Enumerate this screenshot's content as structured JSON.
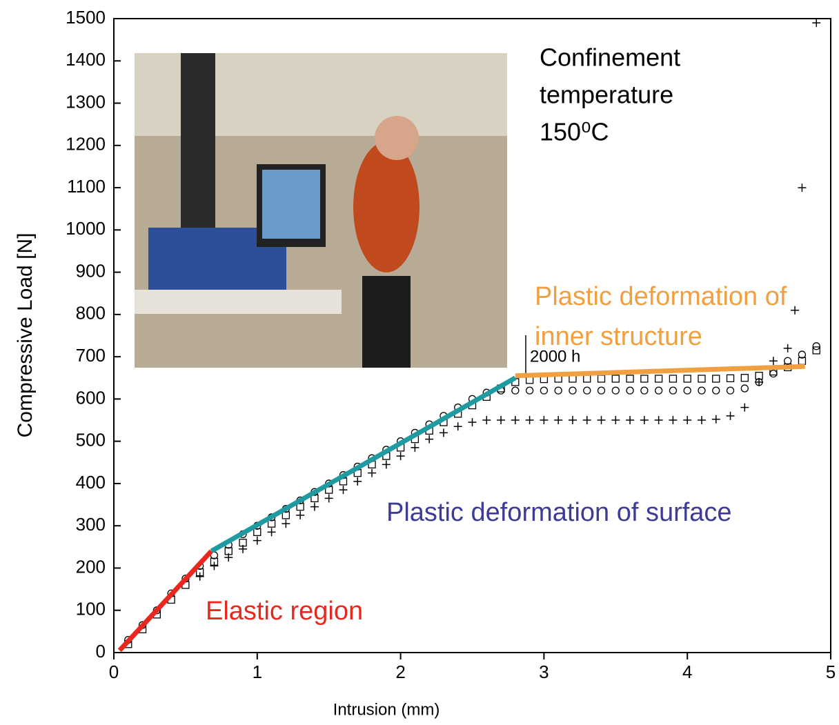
{
  "chart_data": {
    "type": "scatter",
    "x_label": "Intrusion (mm)",
    "y_label": "Compressive Load [N]",
    "xlim": [
      0,
      5
    ],
    "ylim": [
      0,
      1500
    ],
    "xticks": [
      0,
      1,
      2,
      3,
      4,
      5
    ],
    "yticks": [
      0,
      100,
      200,
      300,
      400,
      500,
      600,
      700,
      800,
      900,
      1000,
      1100,
      1200,
      1300,
      1400,
      1500
    ],
    "series": [
      {
        "marker": "square",
        "color": "#000000",
        "x": [
          0.1,
          0.2,
          0.3,
          0.4,
          0.5,
          0.6,
          0.7,
          0.8,
          0.9,
          1.0,
          1.1,
          1.2,
          1.3,
          1.4,
          1.5,
          1.6,
          1.7,
          1.8,
          1.9,
          2.0,
          2.1,
          2.2,
          2.3,
          2.4,
          2.5,
          2.6,
          2.7,
          2.8,
          2.9,
          3.0,
          3.1,
          3.2,
          3.3,
          3.4,
          3.5,
          3.6,
          3.7,
          3.8,
          3.9,
          4.0,
          4.1,
          4.2,
          4.3,
          4.4,
          4.5,
          4.6,
          4.7,
          4.8,
          4.9
        ],
        "values": [
          20,
          55,
          90,
          125,
          160,
          190,
          215,
          240,
          260,
          285,
          305,
          325,
          345,
          365,
          385,
          405,
          425,
          445,
          465,
          485,
          505,
          525,
          545,
          565,
          585,
          605,
          625,
          640,
          645,
          647,
          648,
          648,
          648,
          648,
          648,
          648,
          648,
          648,
          648,
          648,
          648,
          648,
          649,
          650,
          655,
          665,
          675,
          690,
          715
        ]
      },
      {
        "marker": "circle",
        "color": "#000000",
        "x": [
          0.1,
          0.2,
          0.3,
          0.4,
          0.5,
          0.6,
          0.7,
          0.8,
          0.9,
          1.0,
          1.1,
          1.2,
          1.3,
          1.4,
          1.5,
          1.6,
          1.7,
          1.8,
          1.9,
          2.0,
          2.1,
          2.2,
          2.3,
          2.4,
          2.5,
          2.6,
          2.7,
          2.8,
          2.9,
          3.0,
          3.1,
          3.2,
          3.3,
          3.4,
          3.5,
          3.6,
          3.7,
          3.8,
          3.9,
          4.0,
          4.1,
          4.2,
          4.3,
          4.4,
          4.5,
          4.6,
          4.7,
          4.8,
          4.9
        ],
        "values": [
          30,
          65,
          100,
          140,
          175,
          205,
          230,
          255,
          280,
          300,
          320,
          340,
          360,
          380,
          400,
          420,
          440,
          460,
          480,
          500,
          520,
          540,
          560,
          580,
          600,
          615,
          620,
          620,
          620,
          620,
          620,
          620,
          620,
          620,
          620,
          620,
          620,
          620,
          620,
          620,
          620,
          620,
          620,
          625,
          640,
          660,
          690,
          705,
          725
        ]
      },
      {
        "marker": "plus",
        "color": "#000000",
        "x": [
          0.6,
          0.7,
          0.8,
          0.9,
          1.0,
          1.1,
          1.2,
          1.3,
          1.4,
          1.5,
          1.6,
          1.7,
          1.8,
          1.9,
          2.0,
          2.1,
          2.2,
          2.3,
          2.4,
          2.5,
          2.6,
          2.7,
          2.8,
          2.9,
          3.0,
          3.1,
          3.2,
          3.3,
          3.4,
          3.5,
          3.6,
          3.7,
          3.8,
          3.9,
          4.0,
          4.1,
          4.2,
          4.3,
          4.4,
          4.5,
          4.6,
          4.7,
          4.75,
          4.8,
          4.9
        ],
        "values": [
          180,
          205,
          225,
          245,
          265,
          285,
          305,
          325,
          345,
          365,
          385,
          405,
          425,
          445,
          465,
          485,
          505,
          520,
          535,
          545,
          550,
          550,
          550,
          550,
          550,
          550,
          550,
          550,
          550,
          550,
          550,
          550,
          550,
          550,
          550,
          550,
          552,
          560,
          580,
          640,
          690,
          720,
          810,
          1100,
          1490
        ]
      }
    ],
    "fit_lines": [
      {
        "color": "#e8281e",
        "x": [
          0.04,
          0.68
        ],
        "values": [
          5,
          240
        ]
      },
      {
        "color": "#1e9aa0",
        "x": [
          0.68,
          2.8
        ],
        "values": [
          240,
          650
        ]
      },
      {
        "color": "#f0a040",
        "x": [
          2.8,
          4.82
        ],
        "values": [
          655,
          677
        ]
      }
    ],
    "annotations": {
      "elastic": "Elastic region",
      "surface": "Plastic deformation of surface",
      "inner": [
        "Plastic deformation of",
        "inner structure"
      ],
      "time": "2000 h",
      "confinement": [
        "Confinement",
        "temperature",
        "150⁰C"
      ]
    }
  }
}
